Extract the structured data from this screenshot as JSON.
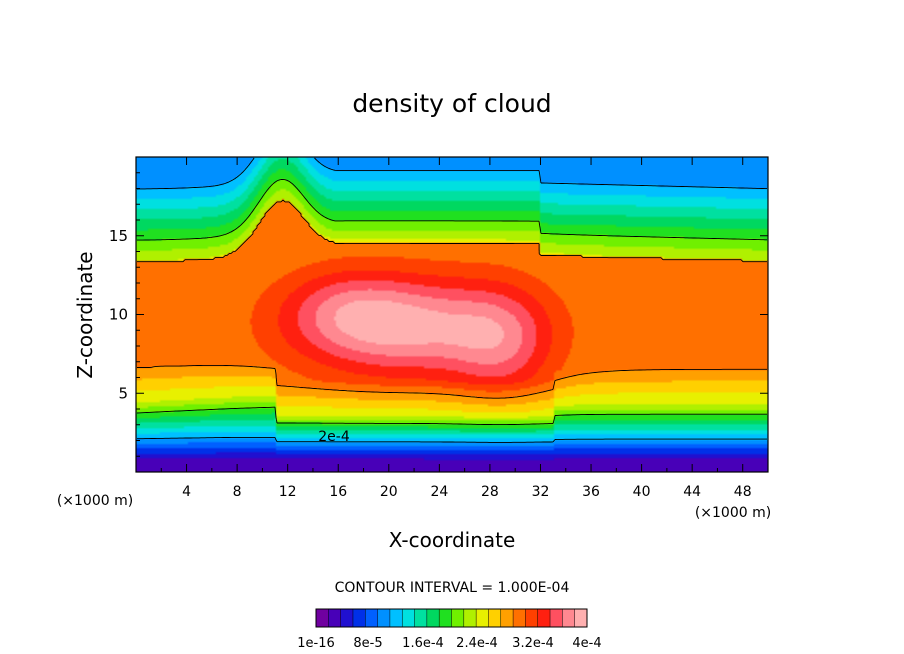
{
  "chart_data": {
    "type": "heatmap",
    "title": "density of cloud",
    "xlabel": "X-coordinate",
    "ylabel": "Z-coordinate",
    "x_unit": "(×1000 m)",
    "x_unit_right": "(×1000 m)",
    "xlim": [
      0,
      50
    ],
    "ylim": [
      0,
      20
    ],
    "x_ticks": [
      "4",
      "8",
      "12",
      "16",
      "20",
      "24",
      "28",
      "32",
      "36",
      "40",
      "44",
      "48"
    ],
    "y_ticks": [
      "5",
      "10",
      "15"
    ],
    "contour_label": "2e-4",
    "contour_interval_text": "CONTOUR INTERVAL = 1.000E-04",
    "colorbar_labels": [
      "1e-16",
      "8e-5",
      "1.6e-4",
      "2.4e-4",
      "3.2e-4",
      "4e-4"
    ],
    "levels": [
      0,
      2e-05,
      4e-05,
      6e-05,
      8e-05,
      0.0001,
      0.00012,
      0.00014,
      0.00016,
      0.00018,
      0.0002,
      0.00022,
      0.00024,
      0.00026,
      0.00028,
      0.0003,
      0.00032,
      0.00034,
      0.00036,
      0.00038,
      0.0004
    ],
    "colors": [
      "#7000a0",
      "#4800b8",
      "#2010d0",
      "#0030e8",
      "#0060ff",
      "#0090ff",
      "#00c0ff",
      "#00e0e0",
      "#00e0a0",
      "#00d860",
      "#20e020",
      "#70f000",
      "#b0f000",
      "#e8f000",
      "#ffd000",
      "#ffa000",
      "#ff7000",
      "#ff4000",
      "#ff2010",
      "#ff5060",
      "#ff8890",
      "#ffb0b0"
    ]
  }
}
